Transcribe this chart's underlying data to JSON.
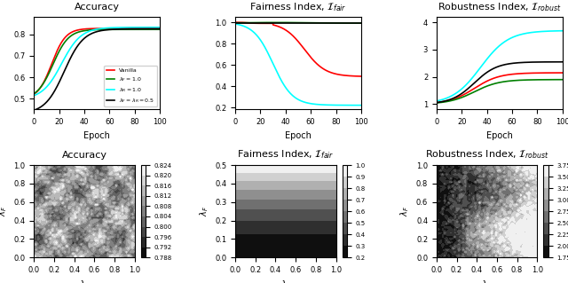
{
  "title_accuracy": "Accuracy",
  "title_fairness": "Fairness Index, $\\mathcal{I}_{fair}$",
  "title_robustness": "Robustness Index, $\\mathcal{I}_{robust}$",
  "xlabel_epoch": "Epoch",
  "xlabel_lambda_R": "$\\lambda_R$",
  "ylabel_lambda_F": "$\\lambda_F$",
  "legend_labels": [
    "Vanilla",
    "$\\lambda_F = 1.0$",
    "$\\lambda_R = 1.0$",
    "$\\lambda_F = \\lambda_R = 0.5$"
  ],
  "line_colors": [
    "red",
    "green",
    "cyan",
    "black"
  ],
  "contour_acc_levels": [
    0.788,
    0.792,
    0.796,
    0.8,
    0.804,
    0.808,
    0.812,
    0.816,
    0.82,
    0.824
  ],
  "contour_fair_levels": [
    0.2,
    0.3,
    0.4,
    0.5,
    0.6,
    0.7,
    0.8,
    0.9,
    1.0
  ],
  "contour_rob_levels": [
    1.75,
    2.0,
    2.25,
    2.5,
    2.75,
    3.0,
    3.25,
    3.5,
    3.75
  ],
  "contour_grid_n": 50
}
